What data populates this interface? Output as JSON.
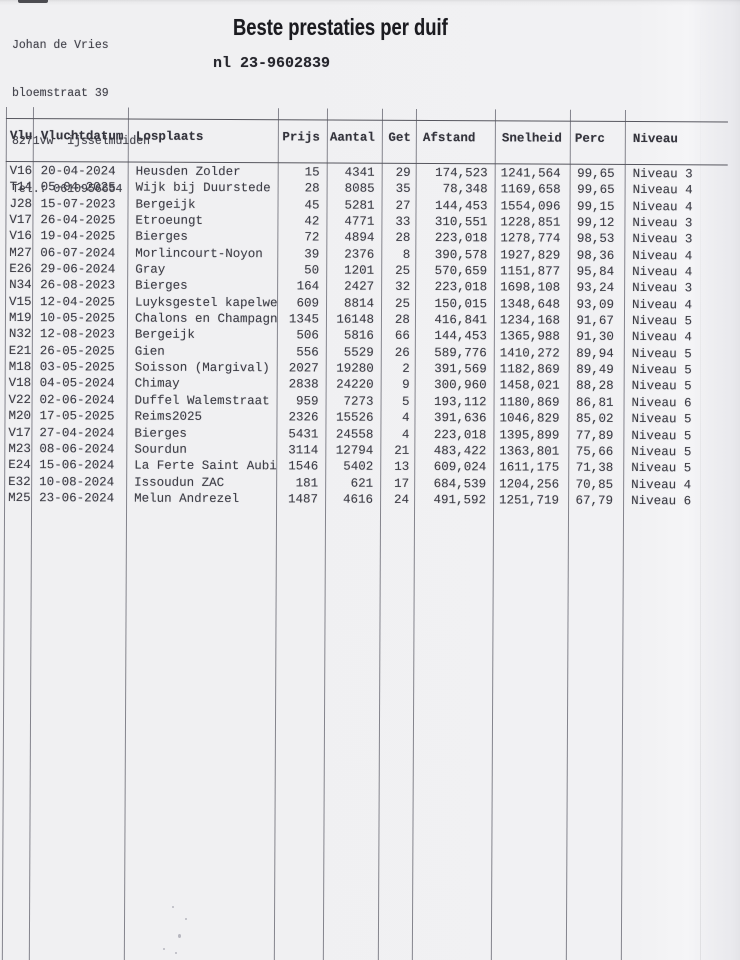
{
  "sender": {
    "name": "Johan de Vries",
    "street": "bloemstraat 39",
    "city": "8271vw  ijsselmuiden",
    "phone": "Tel.: 0610956654"
  },
  "title": "Beste prestaties per duif",
  "ring_number": "nl 23-9602839",
  "colors": {
    "paper": "#f0f0f2",
    "ink": "#3c3c44",
    "table_line": "#56565e"
  },
  "table": {
    "columns": [
      "Vlu",
      "Vluchtdatum",
      "Losplaats",
      "Prijs",
      "Aantal",
      "Get",
      "Afstand",
      "Snelheid",
      "Perc",
      "Niveau"
    ],
    "rows": [
      [
        "V16",
        "20-04-2024",
        "Heusden Zolder",
        "15",
        "4341",
        "29",
        "174,523",
        "1241,564",
        "99,65",
        "Niveau 3"
      ],
      [
        "T14",
        "05-04-2025",
        "Wijk bij Duurstede",
        "28",
        "8085",
        "35",
        "78,348",
        "1169,658",
        "99,65",
        "Niveau 4"
      ],
      [
        "J28",
        "15-07-2023",
        "Bergeijk",
        "45",
        "5281",
        "27",
        "144,453",
        "1554,096",
        "99,15",
        "Niveau 4"
      ],
      [
        "V17",
        "26-04-2025",
        "Etroeungt",
        "42",
        "4771",
        "33",
        "310,551",
        "1228,851",
        "99,12",
        "Niveau 3"
      ],
      [
        "V16",
        "19-04-2025",
        "Bierges",
        "72",
        "4894",
        "28",
        "223,018",
        "1278,774",
        "98,53",
        "Niveau 3"
      ],
      [
        "M27",
        "06-07-2024",
        "Morlincourt-Noyon",
        "39",
        "2376",
        "8",
        "390,578",
        "1927,829",
        "98,36",
        "Niveau 4"
      ],
      [
        "E26",
        "29-06-2024",
        "Gray",
        "50",
        "1201",
        "25",
        "570,659",
        "1151,877",
        "95,84",
        "Niveau 4"
      ],
      [
        "N34",
        "26-08-2023",
        "Bierges",
        "164",
        "2427",
        "32",
        "223,018",
        "1698,108",
        "93,24",
        "Niveau 3"
      ],
      [
        "V15",
        "12-04-2025",
        "Luyksgestel kapelweg",
        "609",
        "8814",
        "25",
        "150,015",
        "1348,648",
        "93,09",
        "Niveau 4"
      ],
      [
        "M19",
        "10-05-2025",
        "Chalons en Champagne",
        "1345",
        "16148",
        "28",
        "416,841",
        "1234,168",
        "91,67",
        "Niveau 5"
      ],
      [
        "N32",
        "12-08-2023",
        "Bergeijk",
        "506",
        "5816",
        "66",
        "144,453",
        "1365,988",
        "91,30",
        "Niveau 4"
      ],
      [
        "E21",
        "26-05-2025",
        "Gien",
        "556",
        "5529",
        "26",
        "589,776",
        "1410,272",
        "89,94",
        "Niveau 5"
      ],
      [
        "M18",
        "03-05-2025",
        "Soisson (Margival)",
        "2027",
        "19280",
        "2",
        "391,569",
        "1182,869",
        "89,49",
        "Niveau 5"
      ],
      [
        "V18",
        "04-05-2024",
        "Chimay",
        "2838",
        "24220",
        "9",
        "300,960",
        "1458,021",
        "88,28",
        "Niveau 5"
      ],
      [
        "V22",
        "02-06-2024",
        "Duffel Walemstraat",
        "959",
        "7273",
        "5",
        "193,112",
        "1180,869",
        "86,81",
        "Niveau 6"
      ],
      [
        "M20",
        "17-05-2025",
        "Reims2025",
        "2326",
        "15526",
        "4",
        "391,636",
        "1046,829",
        "85,02",
        "Niveau 5"
      ],
      [
        "V17",
        "27-04-2024",
        "Bierges",
        "5431",
        "24558",
        "4",
        "223,018",
        "1395,899",
        "77,89",
        "Niveau 5"
      ],
      [
        "M23",
        "08-06-2024",
        "Sourdun",
        "3114",
        "12794",
        "21",
        "483,422",
        "1363,801",
        "75,66",
        "Niveau 5"
      ],
      [
        "E24",
        "15-06-2024",
        "La Ferte Saint Aubin",
        "1546",
        "5402",
        "13",
        "609,024",
        "1611,175",
        "71,38",
        "Niveau 5"
      ],
      [
        "E32",
        "10-08-2024",
        "Issoudun ZAC",
        "181",
        "621",
        "17",
        "684,539",
        "1204,256",
        "70,85",
        "Niveau 4"
      ],
      [
        "M25",
        "23-06-2024",
        "Melun Andrezel",
        "1487",
        "4616",
        "24",
        "491,592",
        "1251,719",
        "67,79",
        "Niveau 6"
      ]
    ]
  }
}
